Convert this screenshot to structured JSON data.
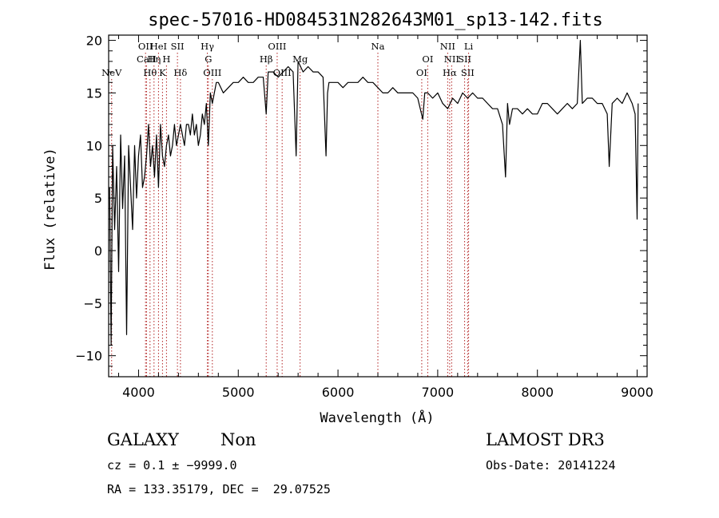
{
  "chart_data": {
    "type": "line",
    "title": "spec-57016-HD084531N282643M01_sp13-142.fits",
    "xlabel": "Wavelength (Å)",
    "ylabel": "Flux (relative)",
    "xlim": [
      3700,
      9100
    ],
    "ylim": [
      -12,
      20.5
    ],
    "xticks": [
      4000,
      5000,
      6000,
      7000,
      8000,
      9000
    ],
    "xtick_labels": [
      "4000",
      "5000",
      "6000",
      "7000",
      "8000",
      "9000"
    ],
    "yticks": [
      -10,
      -5,
      0,
      5,
      10,
      15,
      20
    ],
    "ytick_labels": [
      "−10",
      "−5",
      "0",
      "5",
      "10",
      "15",
      "20"
    ],
    "series": [
      {
        "name": "spectrum",
        "x": [
          3710,
          3725,
          3740,
          3760,
          3780,
          3800,
          3820,
          3840,
          3860,
          3880,
          3900,
          3920,
          3940,
          3960,
          3980,
          4000,
          4020,
          4040,
          4060,
          4080,
          4100,
          4120,
          4140,
          4160,
          4180,
          4200,
          4220,
          4240,
          4260,
          4280,
          4300,
          4320,
          4340,
          4360,
          4380,
          4400,
          4420,
          4440,
          4460,
          4480,
          4500,
          4520,
          4540,
          4560,
          4580,
          4600,
          4620,
          4640,
          4660,
          4680,
          4700,
          4720,
          4740,
          4760,
          4780,
          4800,
          4850,
          4900,
          4950,
          5000,
          5050,
          5100,
          5150,
          5200,
          5250,
          5280,
          5300,
          5350,
          5400,
          5450,
          5500,
          5550,
          5580,
          5600,
          5650,
          5700,
          5750,
          5800,
          5850,
          5880,
          5895,
          5910,
          5950,
          6000,
          6050,
          6100,
          6150,
          6200,
          6250,
          6300,
          6350,
          6400,
          6450,
          6500,
          6550,
          6600,
          6650,
          6700,
          6750,
          6800,
          6850,
          6870,
          6900,
          6950,
          7000,
          7050,
          7100,
          7150,
          7200,
          7250,
          7300,
          7350,
          7400,
          7450,
          7500,
          7550,
          7600,
          7650,
          7680,
          7700,
          7720,
          7750,
          7800,
          7850,
          7900,
          7950,
          8000,
          8050,
          8100,
          8150,
          8200,
          8250,
          8300,
          8350,
          8400,
          8430,
          8450,
          8500,
          8550,
          8600,
          8650,
          8700,
          8720,
          8750,
          8800,
          8850,
          8900,
          8950,
          8980,
          9000,
          9010
        ],
        "y": [
          6,
          -9,
          10,
          2,
          8,
          -2,
          11,
          4,
          9,
          -8,
          10,
          6,
          2,
          10,
          5,
          9,
          11,
          6,
          7,
          9,
          12,
          8,
          10,
          7,
          11,
          6,
          12,
          9,
          8,
          10,
          11,
          9,
          10,
          12,
          10,
          11,
          12,
          11,
          10,
          12,
          12,
          11,
          13,
          11,
          12,
          10,
          11,
          13,
          12,
          14,
          10,
          15,
          14,
          15,
          16,
          16,
          15,
          15.5,
          16,
          16,
          16.5,
          16,
          16,
          16.5,
          16.5,
          13,
          17,
          17,
          16.5,
          17,
          17.5,
          17,
          9,
          18,
          17,
          17.5,
          17,
          17,
          16.5,
          9,
          15,
          16,
          16,
          16,
          15.5,
          16,
          16,
          16,
          16.5,
          16,
          16,
          15.5,
          15,
          15,
          15.5,
          15,
          15,
          15,
          15,
          14.5,
          12.5,
          15,
          15,
          14.5,
          15,
          14,
          13.5,
          14.5,
          14,
          15,
          14.5,
          15,
          14.5,
          14.5,
          14,
          13.5,
          13.5,
          12,
          7,
          14,
          12,
          13.5,
          13.5,
          13,
          13.5,
          13,
          13,
          14,
          14,
          13.5,
          13,
          13.5,
          14,
          13.5,
          14,
          20,
          14,
          14.5,
          14.5,
          14,
          14,
          13,
          8,
          14,
          14.5,
          14,
          15,
          14,
          13,
          3,
          14
        ]
      }
    ],
    "line_markers": [
      {
        "name": "NeV",
        "x": 3730,
        "row": 3
      },
      {
        "name": "OII",
        "x": 4070,
        "row": 1
      },
      {
        "name": "CaII",
        "x": 4080,
        "row": 2
      },
      {
        "name": "Hθ",
        "x": 4115,
        "row": 3
      },
      {
        "name": "Hη",
        "x": 4155,
        "row": 2
      },
      {
        "name": "HeI",
        "x": 4200,
        "row": 1
      },
      {
        "name": "K",
        "x": 4240,
        "row": 3
      },
      {
        "name": "H",
        "x": 4280,
        "row": 2
      },
      {
        "name": "SII",
        "x": 4390,
        "row": 1
      },
      {
        "name": "Hδ",
        "x": 4420,
        "row": 3
      },
      {
        "name": "Hγ",
        "x": 4690,
        "row": 1
      },
      {
        "name": "G",
        "x": 4700,
        "row": 2
      },
      {
        "name": "OIII",
        "x": 4740,
        "row": 3
      },
      {
        "name": "Hβ",
        "x": 5280,
        "row": 2
      },
      {
        "name": "OIII",
        "x": 5390,
        "row": 1
      },
      {
        "name": "OIII",
        "x": 5440,
        "row": 3
      },
      {
        "name": "Mg",
        "x": 5620,
        "row": 2
      },
      {
        "name": "Na",
        "x": 6400,
        "row": 1
      },
      {
        "name": "OI",
        "x": 6840,
        "row": 3
      },
      {
        "name": "OI",
        "x": 6900,
        "row": 2
      },
      {
        "name": "NII",
        "x": 7100,
        "row": 1
      },
      {
        "name": "NII",
        "x": 7140,
        "row": 2
      },
      {
        "name": "Hα",
        "x": 7120,
        "row": 3
      },
      {
        "name": "SII",
        "x": 7270,
        "row": 2
      },
      {
        "name": "SII",
        "x": 7300,
        "row": 3
      },
      {
        "name": "Li",
        "x": 7310,
        "row": 1
      }
    ],
    "grid": false,
    "legend": "none"
  },
  "info": {
    "object_class": "GALAXY",
    "subclass": "Non",
    "survey": "LAMOST DR3",
    "cz": "cz = 0.1 ± −9999.0",
    "obs_date": "Obs-Date: 20141224",
    "coords": "RA = 133.35179, DEC =  29.07525"
  },
  "colors": {
    "axis": "#000000",
    "spectrum": "#000000",
    "marker": "#b22222"
  }
}
